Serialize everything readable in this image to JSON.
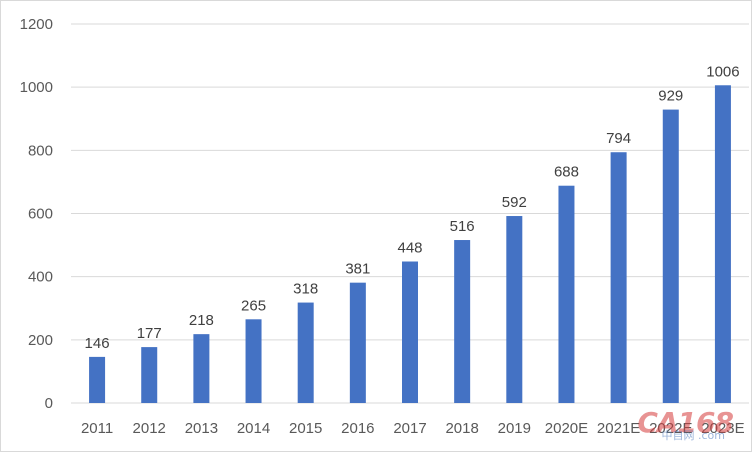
{
  "chart_data": {
    "type": "bar",
    "categories": [
      "2011",
      "2012",
      "2013",
      "2014",
      "2015",
      "2016",
      "2017",
      "2018",
      "2019",
      "2020E",
      "2021E",
      "2022E",
      "2023E"
    ],
    "values": [
      146,
      177,
      218,
      265,
      318,
      381,
      448,
      516,
      592,
      688,
      794,
      929,
      1006
    ],
    "data_labels": [
      "146",
      "177",
      "218",
      "265",
      "318",
      "381",
      "448",
      "516",
      "592",
      "688",
      "794",
      "929",
      "1006"
    ],
    "title": "",
    "xlabel": "",
    "ylabel": "",
    "ylim": [
      0,
      1200
    ],
    "yticks": [
      0,
      200,
      400,
      600,
      800,
      1000,
      1200
    ],
    "ytick_labels": [
      "0",
      "200",
      "400",
      "600",
      "800",
      "1000",
      "1200"
    ],
    "grid": true,
    "legend": "none",
    "bar_color": "#4472c4",
    "grid_color": "#d9d9d9"
  },
  "watermark": {
    "logo_text": "CA168",
    "sub_text": "中自网 .com"
  }
}
